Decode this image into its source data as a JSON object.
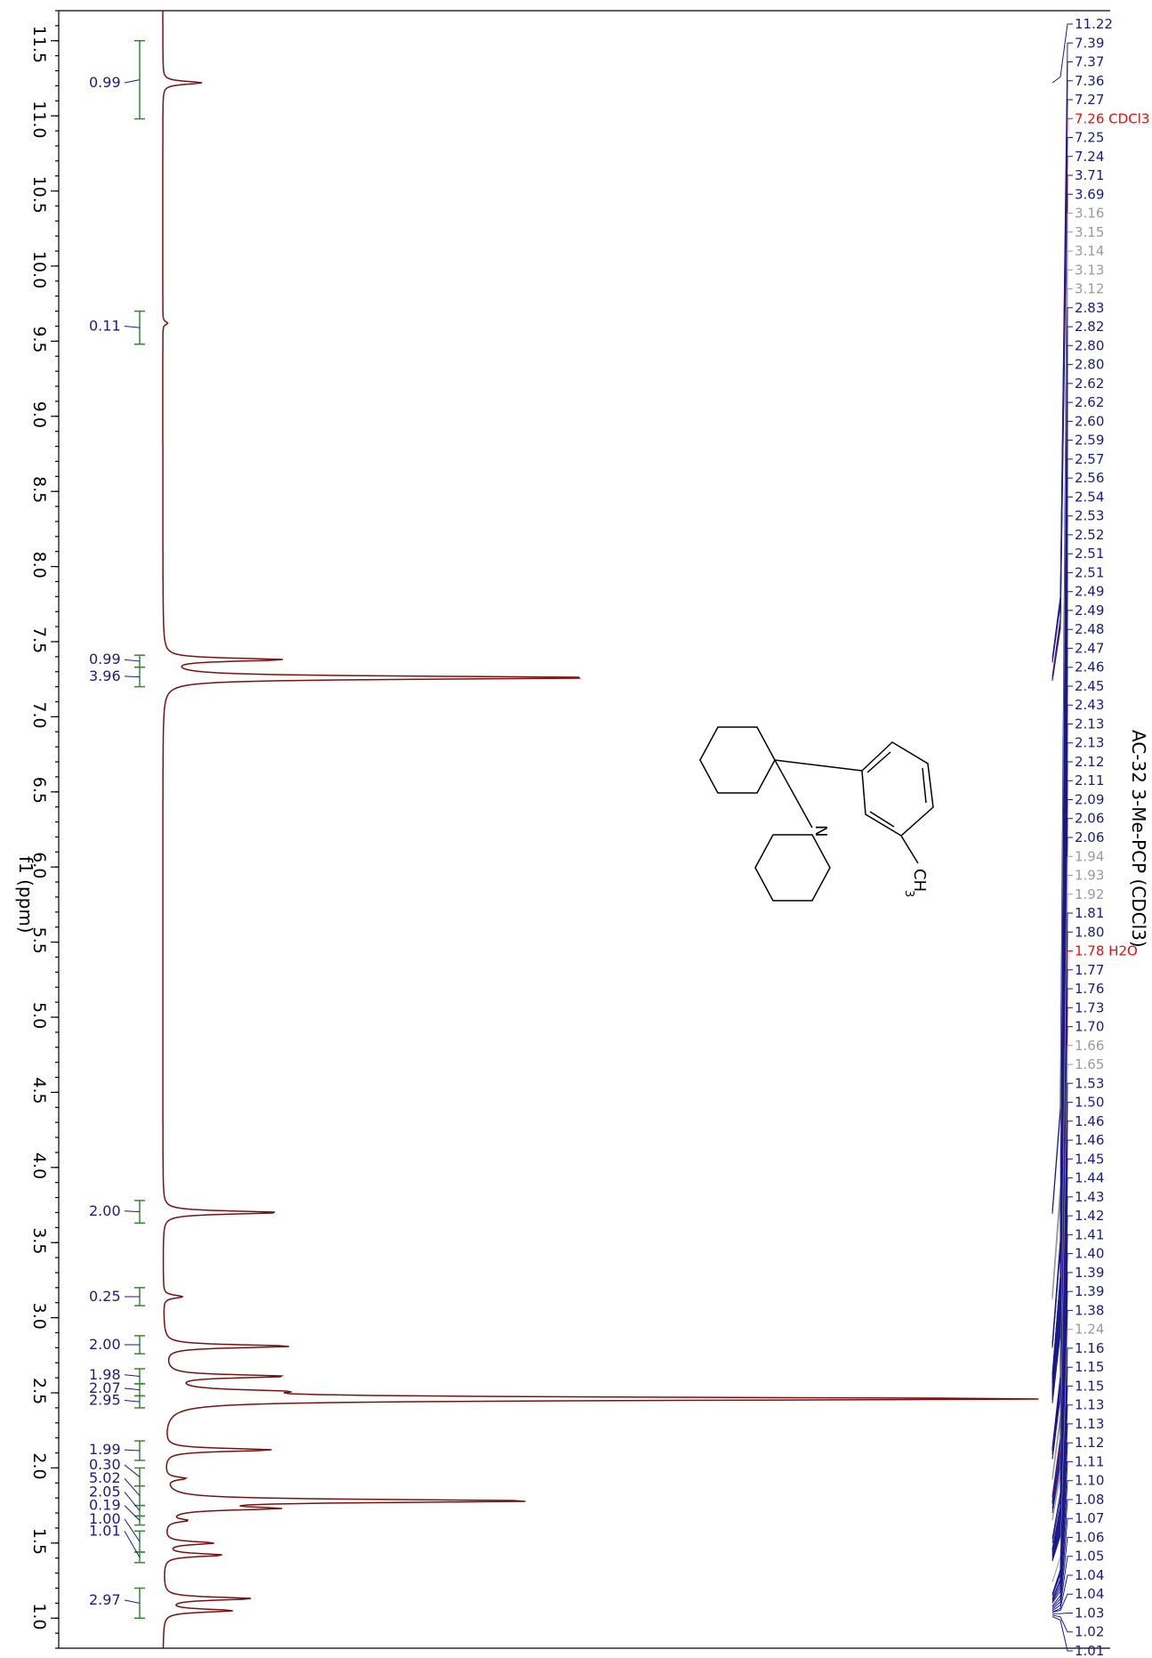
{
  "chart_data": {
    "type": "line",
    "title": "AC-32 3-Me-PCP (CDCl3)",
    "xlabel": "f1 (ppm)",
    "xlim": [
      11.7,
      0.8
    ],
    "x_ticks": [
      "11.5",
      "11.0",
      "10.5",
      "10.0",
      "9.5",
      "9.0",
      "8.5",
      "8.0",
      "7.5",
      "7.0",
      "6.5",
      "6.0",
      "5.5",
      "5.0",
      "4.5",
      "4.0",
      "3.5",
      "3.0",
      "2.5",
      "2.0",
      "1.5",
      "1.0"
    ],
    "peaks": [
      {
        "ppm": 11.22,
        "height": 0.04
      },
      {
        "ppm": 9.62,
        "height": 0.005
      },
      {
        "ppm": 7.38,
        "height": 0.12
      },
      {
        "ppm": 7.26,
        "height": 0.45
      },
      {
        "ppm": 3.7,
        "height": 0.12
      },
      {
        "ppm": 3.14,
        "height": 0.02
      },
      {
        "ppm": 2.81,
        "height": 0.13
      },
      {
        "ppm": 2.61,
        "height": 0.12
      },
      {
        "ppm": 2.51,
        "height": 0.08
      },
      {
        "ppm": 2.46,
        "height": 0.9
      },
      {
        "ppm": 2.12,
        "height": 0.11
      },
      {
        "ppm": 1.93,
        "height": 0.02
      },
      {
        "ppm": 1.78,
        "height": 0.38
      },
      {
        "ppm": 1.73,
        "height": 0.1
      },
      {
        "ppm": 1.65,
        "height": 0.02
      },
      {
        "ppm": 1.5,
        "height": 0.05
      },
      {
        "ppm": 1.42,
        "height": 0.06
      },
      {
        "ppm": 1.13,
        "height": 0.09
      },
      {
        "ppm": 1.05,
        "height": 0.07
      }
    ],
    "integrals": [
      {
        "value": "0.99",
        "from": 11.5,
        "to": 10.98,
        "label_ppm": 11.22
      },
      {
        "value": "0.11",
        "from": 9.7,
        "to": 9.48,
        "label_ppm": 9.6
      },
      {
        "value": "0.99",
        "from": 7.41,
        "to": 7.33,
        "label_ppm": 7.38
      },
      {
        "value": "3.96",
        "from": 7.33,
        "to": 7.2,
        "label_ppm": 7.27
      },
      {
        "value": "2.00",
        "from": 3.78,
        "to": 3.63,
        "label_ppm": 3.71
      },
      {
        "value": "0.25",
        "from": 3.2,
        "to": 3.08,
        "label_ppm": 3.14
      },
      {
        "value": "2.00",
        "from": 2.88,
        "to": 2.76,
        "label_ppm": 2.82
      },
      {
        "value": "1.98",
        "from": 2.66,
        "to": 2.56,
        "label_ppm": 2.62
      },
      {
        "value": "2.07",
        "from": 2.56,
        "to": 2.48,
        "label_ppm": 2.53
      },
      {
        "value": "2.95",
        "from": 2.48,
        "to": 2.4,
        "label_ppm": 2.45
      },
      {
        "value": "1.99",
        "from": 2.18,
        "to": 2.05,
        "label_ppm": 2.12
      },
      {
        "value": "0.30",
        "from": 2.0,
        "to": 1.88,
        "label_ppm": 2.02
      },
      {
        "value": "5.02",
        "from": 1.88,
        "to": 1.75,
        "label_ppm": 1.93
      },
      {
        "value": "2.05",
        "from": 1.75,
        "to": 1.68,
        "label_ppm": 1.84
      },
      {
        "value": "0.19",
        "from": 1.68,
        "to": 1.62,
        "label_ppm": 1.75
      },
      {
        "value": "1.00",
        "from": 1.58,
        "to": 1.44,
        "label_ppm": 1.66
      },
      {
        "value": "1.01",
        "from": 1.44,
        "to": 1.37,
        "label_ppm": 1.58
      },
      {
        "value": "2.97",
        "from": 1.2,
        "to": 1.0,
        "label_ppm": 1.12
      }
    ],
    "peak_labels": [
      {
        "text": "11.22",
        "color": "navy"
      },
      {
        "text": "7.39",
        "color": "navy"
      },
      {
        "text": "7.37",
        "color": "navy"
      },
      {
        "text": "7.36",
        "color": "navy"
      },
      {
        "text": "7.27",
        "color": "navy"
      },
      {
        "text": "7.26 CDCl3",
        "color": "red"
      },
      {
        "text": "7.25",
        "color": "navy"
      },
      {
        "text": "7.24",
        "color": "navy"
      },
      {
        "text": "3.71",
        "color": "navy"
      },
      {
        "text": "3.69",
        "color": "navy"
      },
      {
        "text": "3.16",
        "color": "gray"
      },
      {
        "text": "3.15",
        "color": "gray"
      },
      {
        "text": "3.14",
        "color": "gray"
      },
      {
        "text": "3.13",
        "color": "gray"
      },
      {
        "text": "3.12",
        "color": "gray"
      },
      {
        "text": "2.83",
        "color": "navy"
      },
      {
        "text": "2.82",
        "color": "navy"
      },
      {
        "text": "2.80",
        "color": "navy"
      },
      {
        "text": "2.80",
        "color": "navy"
      },
      {
        "text": "2.62",
        "color": "navy"
      },
      {
        "text": "2.62",
        "color": "navy"
      },
      {
        "text": "2.60",
        "color": "navy"
      },
      {
        "text": "2.59",
        "color": "navy"
      },
      {
        "text": "2.57",
        "color": "navy"
      },
      {
        "text": "2.56",
        "color": "navy"
      },
      {
        "text": "2.54",
        "color": "navy"
      },
      {
        "text": "2.53",
        "color": "navy"
      },
      {
        "text": "2.52",
        "color": "navy"
      },
      {
        "text": "2.51",
        "color": "navy"
      },
      {
        "text": "2.51",
        "color": "navy"
      },
      {
        "text": "2.49",
        "color": "navy"
      },
      {
        "text": "2.49",
        "color": "navy"
      },
      {
        "text": "2.48",
        "color": "navy"
      },
      {
        "text": "2.47",
        "color": "navy"
      },
      {
        "text": "2.46",
        "color": "navy"
      },
      {
        "text": "2.45",
        "color": "navy"
      },
      {
        "text": "2.43",
        "color": "navy"
      },
      {
        "text": "2.13",
        "color": "navy"
      },
      {
        "text": "2.13",
        "color": "navy"
      },
      {
        "text": "2.12",
        "color": "navy"
      },
      {
        "text": "2.11",
        "color": "navy"
      },
      {
        "text": "2.09",
        "color": "navy"
      },
      {
        "text": "2.06",
        "color": "navy"
      },
      {
        "text": "2.06",
        "color": "navy"
      },
      {
        "text": "1.94",
        "color": "gray"
      },
      {
        "text": "1.93",
        "color": "gray"
      },
      {
        "text": "1.92",
        "color": "gray"
      },
      {
        "text": "1.81",
        "color": "navy"
      },
      {
        "text": "1.80",
        "color": "navy"
      },
      {
        "text": "1.78 H2O",
        "color": "red"
      },
      {
        "text": "1.77",
        "color": "navy"
      },
      {
        "text": "1.76",
        "color": "navy"
      },
      {
        "text": "1.73",
        "color": "navy"
      },
      {
        "text": "1.70",
        "color": "navy"
      },
      {
        "text": "1.66",
        "color": "gray"
      },
      {
        "text": "1.65",
        "color": "gray"
      },
      {
        "text": "1.53",
        "color": "navy"
      },
      {
        "text": "1.50",
        "color": "navy"
      },
      {
        "text": "1.46",
        "color": "navy"
      },
      {
        "text": "1.46",
        "color": "navy"
      },
      {
        "text": "1.45",
        "color": "navy"
      },
      {
        "text": "1.44",
        "color": "navy"
      },
      {
        "text": "1.43",
        "color": "navy"
      },
      {
        "text": "1.42",
        "color": "navy"
      },
      {
        "text": "1.41",
        "color": "navy"
      },
      {
        "text": "1.40",
        "color": "navy"
      },
      {
        "text": "1.39",
        "color": "navy"
      },
      {
        "text": "1.39",
        "color": "navy"
      },
      {
        "text": "1.38",
        "color": "navy"
      },
      {
        "text": "1.24",
        "color": "gray"
      },
      {
        "text": "1.16",
        "color": "navy"
      },
      {
        "text": "1.15",
        "color": "navy"
      },
      {
        "text": "1.15",
        "color": "navy"
      },
      {
        "text": "1.13",
        "color": "navy"
      },
      {
        "text": "1.13",
        "color": "navy"
      },
      {
        "text": "1.12",
        "color": "navy"
      },
      {
        "text": "1.11",
        "color": "navy"
      },
      {
        "text": "1.10",
        "color": "navy"
      },
      {
        "text": "1.08",
        "color": "navy"
      },
      {
        "text": "1.07",
        "color": "navy"
      },
      {
        "text": "1.06",
        "color": "navy"
      },
      {
        "text": "1.05",
        "color": "navy"
      },
      {
        "text": "1.04",
        "color": "navy"
      },
      {
        "text": "1.04",
        "color": "navy"
      },
      {
        "text": "1.03",
        "color": "navy"
      },
      {
        "text": "1.02",
        "color": "navy"
      },
      {
        "text": "1.01",
        "color": "navy"
      }
    ],
    "structure_labels": {
      "n": "N",
      "ch": "CH",
      "sub": "3"
    },
    "colors": {
      "spectrum": "#7a1010",
      "integral_bracket": "#2e8b2e",
      "integral_text": "#1a1a8c",
      "label_navy": "#1a1a8c",
      "label_red": "#e01010",
      "label_gray": "#9a9a9a"
    },
    "grid": false
  }
}
